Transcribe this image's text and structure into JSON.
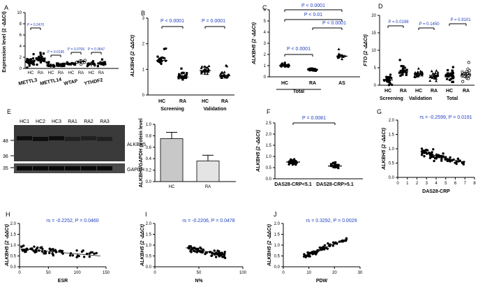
{
  "chart_data": [
    {
      "type": "scatter",
      "panel": "A",
      "ylabel": "Expression level (2 -ΔΔCt)",
      "ylim": [
        0,
        10
      ],
      "yticks": [
        "0",
        "2",
        "4",
        "6",
        "8",
        "10"
      ],
      "groups": [
        "METTL3",
        "METTL14",
        "WTAP",
        "YTHDF2"
      ],
      "subgroups": [
        "HC",
        "RA"
      ],
      "means": [
        1.2,
        1.8,
        0.5,
        0.6,
        0.8,
        1.2,
        0.7,
        0.9
      ],
      "pvalues": [
        "P = 0.2470",
        "P = 0.0195",
        "P = 0.0706",
        "P = 0.3647"
      ]
    },
    {
      "type": "scatter",
      "panel": "B",
      "ylabel": "ALKBH5 (2 -ΔΔCt)",
      "ylim": [
        0,
        3
      ],
      "yticks": [
        "0",
        "1",
        "2",
        "3"
      ],
      "groups": [
        "Screening",
        "Validation"
      ],
      "subgroups": [
        "HC",
        "RA"
      ],
      "means": [
        1.35,
        0.7,
        0.95,
        0.75
      ],
      "pvalues": [
        "P < 0.0001",
        "P = 0.0001"
      ]
    },
    {
      "type": "scatter",
      "panel": "C",
      "ylabel": "ALKBH5 (2 -ΔΔCt)",
      "ylim": [
        0,
        6
      ],
      "yticks": [
        "0",
        "1",
        "2",
        "3",
        "4",
        "5",
        "6"
      ],
      "categories": [
        "HC",
        "RA",
        "AS"
      ],
      "group_label": "Total",
      "means": [
        1.0,
        0.65,
        1.85
      ],
      "pvalues": [
        "P < 0.0001",
        "P < 0.01",
        "P < 0.0001",
        "P < 0.0001"
      ]
    },
    {
      "type": "scatter",
      "panel": "D",
      "ylabel": "FTO (2 -ΔΔCt)",
      "ylim": [
        0,
        20
      ],
      "yticks": [
        "0",
        "5",
        "10",
        "15",
        "20"
      ],
      "groups": [
        "Screening",
        "Validation",
        "Total"
      ],
      "subgroups": [
        "HC",
        "RA"
      ],
      "means": [
        1.5,
        3.8,
        3.2,
        2.8,
        2.8,
        3.0
      ],
      "pvalues": [
        "P = 0.0198",
        "P = 0.1450",
        "P = 0.9101"
      ]
    },
    {
      "type": "bar",
      "panel": "E",
      "ylabel": "ALKBH5/GAPDH protein level",
      "ylim": [
        0,
        1.0
      ],
      "yticks": [
        "0.0",
        "0.2",
        "0.4",
        "0.6",
        "0.8",
        "1.0"
      ],
      "categories": [
        "HC",
        "RA"
      ],
      "values": [
        0.75,
        0.36
      ],
      "errors": [
        0.11,
        0.1
      ]
    },
    {
      "type": "scatter",
      "panel": "F",
      "ylabel": "ALKBH5 (2 -ΔΔCt)",
      "ylim": [
        0,
        2.5
      ],
      "yticks": [
        "0.0",
        "0.5",
        "1.0",
        "1.5",
        "2.0",
        "2.5"
      ],
      "categories": [
        "DAS28-CRP<5.1",
        "DAS28-CRP>5.1"
      ],
      "means": [
        0.75,
        0.57
      ],
      "pvalues": [
        "P = 0.0081"
      ]
    },
    {
      "type": "scatter",
      "panel": "G",
      "xlabel": "DAS28-CRP",
      "ylabel": "ALKBH5 (2 -ΔΔCt)",
      "xlim": [
        0,
        8
      ],
      "ylim": [
        0,
        2
      ],
      "xticks": [
        "0",
        "1",
        "2",
        "3",
        "4",
        "5",
        "6",
        "7",
        "8"
      ],
      "yticks": [
        "0.0",
        "0.5",
        "1.0",
        "1.5",
        "2.0"
      ],
      "fit": [
        [
          2.5,
          0.88
        ],
        [
          7.0,
          0.52
        ]
      ],
      "stats": "rs = -0.2599, P = 0.0191"
    },
    {
      "type": "scatter",
      "panel": "H",
      "xlabel": "ESR",
      "ylabel": "ALKBH5 (2 -ΔΔCt)",
      "xlim": [
        0,
        150
      ],
      "ylim": [
        0,
        2.0
      ],
      "xticks": [
        "0",
        "50",
        "100",
        "150"
      ],
      "yticks": [
        "0.0",
        "0.5",
        "1.0",
        "1.5",
        "2.0"
      ],
      "fit": [
        [
          2,
          0.83
        ],
        [
          140,
          0.5
        ]
      ],
      "stats": "rs = -0.2252, P = 0.0460"
    },
    {
      "type": "scatter",
      "panel": "I",
      "xlabel": "N%",
      "ylabel": "ALKBH5 (2 -ΔΔCt)",
      "xlim": [
        0,
        100
      ],
      "ylim": [
        0,
        2.0
      ],
      "xticks": [
        "0",
        "50",
        "100"
      ],
      "yticks": [
        "0.0",
        "0.5",
        "1.0",
        "1.5",
        "2.0"
      ],
      "fit": [
        [
          35,
          0.88
        ],
        [
          80,
          0.55
        ]
      ],
      "stats": "rs = -0.2206, P = 0.0478"
    },
    {
      "type": "scatter",
      "panel": "J",
      "xlabel": "PDW",
      "ylabel": "ALKBH5 (2 -ΔΔCt)",
      "xlim": [
        0,
        30
      ],
      "ylim": [
        0,
        2.0
      ],
      "xticks": [
        "0",
        "10",
        "20",
        "30"
      ],
      "yticks": [
        "0.0",
        "0.5",
        "1.0",
        "1.5",
        "2.0"
      ],
      "fit": [
        [
          8,
          0.5
        ],
        [
          25,
          1.3
        ]
      ],
      "stats": "rs = 0.3292, P = 0.0029"
    }
  ],
  "blot": {
    "lanes": [
      "HC1",
      "HC2",
      "HC3",
      "RA1",
      "RA2",
      "RA3"
    ],
    "markers": [
      "48",
      "36",
      "35"
    ],
    "proteins": [
      "ALKBH5",
      "GAPDH"
    ]
  },
  "panel_letters": [
    "A",
    "B",
    "C",
    "D",
    "E",
    "F",
    "G",
    "H",
    "I",
    "J"
  ]
}
